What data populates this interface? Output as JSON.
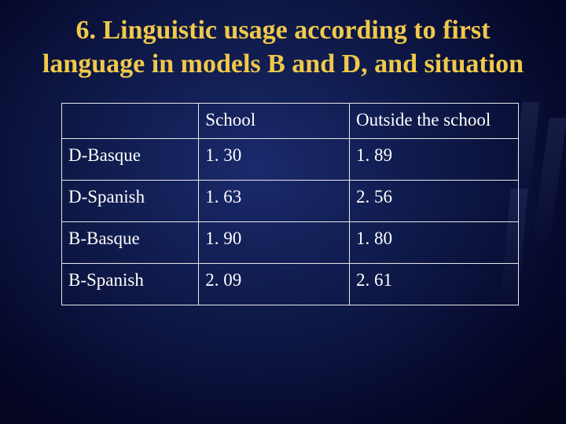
{
  "title": "6.  Linguistic usage according to first language in models B and D, and situation",
  "table": {
    "columns": [
      "",
      "School",
      "Outside the school"
    ],
    "rows": [
      [
        "D-Basque",
        "1. 30",
        "1. 89"
      ],
      [
        "D-Spanish",
        "1. 63",
        "2. 56"
      ],
      [
        "B-Basque",
        "1. 90",
        "1. 80"
      ],
      [
        "B-Spanish",
        "2. 09",
        "2. 61"
      ]
    ],
    "col_widths_pct": [
      30,
      33,
      37
    ],
    "border_color": "#e8e8e8",
    "text_color": "#ffffff",
    "title_color": "#f0c94a",
    "title_fontsize_pt": 26,
    "cell_fontsize_pt": 17,
    "background_gradient": [
      "#1a2a6c",
      "#0f1a4a",
      "#06082a",
      "#020418"
    ]
  }
}
